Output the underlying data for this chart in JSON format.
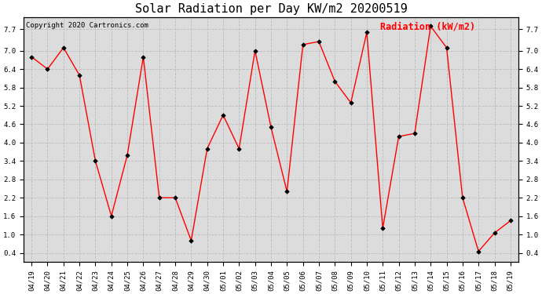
{
  "title": "Solar Radiation per Day KW/m2 20200519",
  "copyright_text": "Copyright 2020 Cartronics.com",
  "legend_label": "Radiation (kW/m2)",
  "dates": [
    "04/19",
    "04/20",
    "04/21",
    "04/22",
    "04/23",
    "04/24",
    "04/25",
    "04/26",
    "04/27",
    "04/28",
    "04/29",
    "04/30",
    "05/01",
    "05/02",
    "05/03",
    "05/04",
    "05/05",
    "05/06",
    "05/07",
    "05/08",
    "05/09",
    "05/10",
    "05/11",
    "05/12",
    "05/13",
    "05/14",
    "05/15",
    "05/16",
    "05/17",
    "05/18",
    "05/19"
  ],
  "values": [
    6.8,
    6.4,
    7.1,
    6.2,
    3.4,
    1.6,
    3.6,
    6.8,
    2.2,
    2.2,
    0.8,
    3.8,
    4.9,
    3.8,
    7.0,
    4.5,
    2.4,
    7.2,
    7.3,
    6.0,
    5.3,
    7.6,
    1.2,
    4.2,
    4.3,
    7.8,
    7.1,
    2.2,
    0.45,
    1.05,
    1.45
  ],
  "yticks": [
    0.4,
    1.0,
    1.6,
    2.2,
    2.8,
    3.4,
    4.0,
    4.6,
    5.2,
    5.8,
    6.4,
    7.0,
    7.7
  ],
  "ylim": [
    0.1,
    8.1
  ],
  "line_color": "red",
  "marker_color": "black",
  "bg_color": "#dcdcdc",
  "grid_color": "#bbbbbb",
  "title_fontsize": 11,
  "copyright_fontsize": 6.5,
  "legend_fontsize": 8.5,
  "tick_fontsize": 6.5,
  "figwidth": 6.9,
  "figheight": 3.75,
  "dpi": 100
}
